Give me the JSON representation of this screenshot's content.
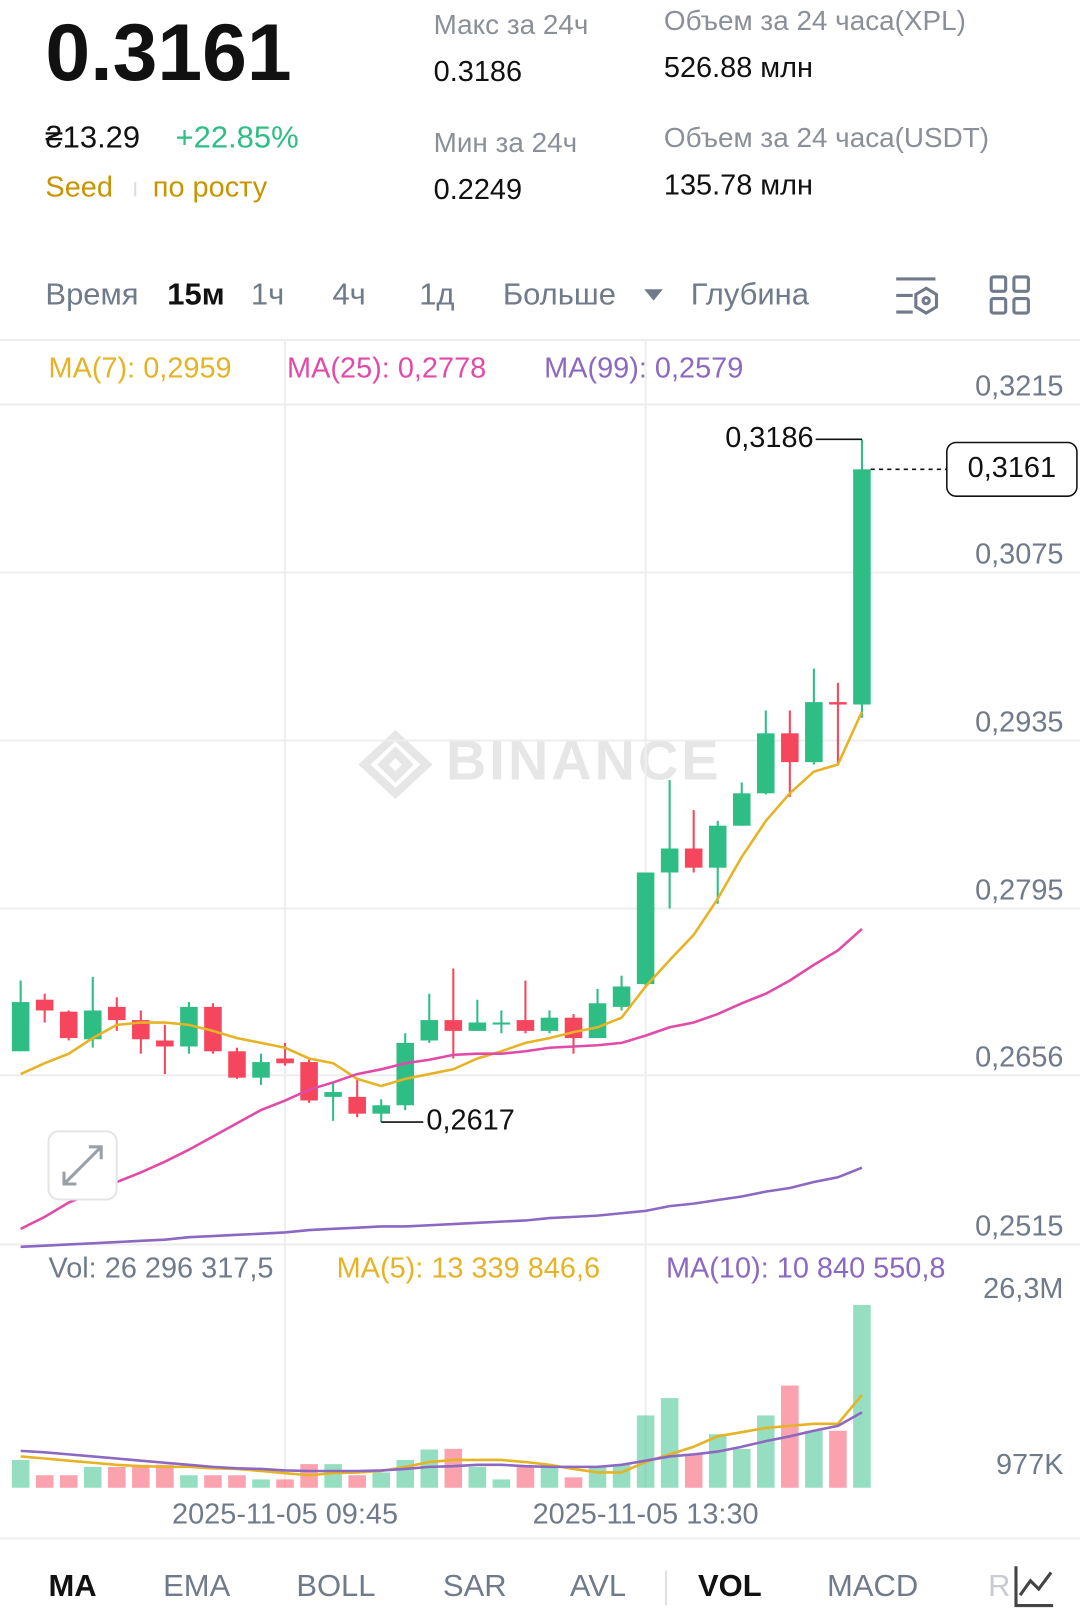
{
  "header": {
    "price": "0.3161",
    "fiat": "₴13.29",
    "change": "+22.85%",
    "tags": [
      "Seed",
      "по росту"
    ],
    "stats": [
      {
        "label": "Макс за 24ч",
        "value": "0.3186"
      },
      {
        "label": "Мин за 24ч",
        "value": "0.2249"
      },
      {
        "label": "Объем за 24 часа(XPL)",
        "value": "526.88 млн"
      },
      {
        "label": "Объем за 24 часа(USDT)",
        "value": "135.78 млн"
      }
    ]
  },
  "tabs": {
    "time_label": "Время",
    "intervals": [
      "15м",
      "1ч",
      "4ч",
      "1д"
    ],
    "more": "Больше",
    "depth": "Глубина"
  },
  "watermark": "BINANCE",
  "chart_data": [
    {
      "type": "candlestick",
      "categories": [
        null,
        null,
        null,
        null,
        null,
        null,
        null,
        null,
        null,
        null,
        null,
        "2025-11-05 09:45",
        null,
        null,
        null,
        null,
        null,
        null,
        null,
        null,
        null,
        null,
        null,
        null,
        null,
        null,
        "2025-11-05 13:30",
        null,
        null,
        null,
        null,
        null,
        null,
        null,
        null,
        null
      ],
      "open": [
        0.2676,
        0.2719,
        0.2709,
        0.2686,
        0.2713,
        0.2702,
        0.2685,
        0.268,
        0.2713,
        0.2676,
        0.2654,
        0.267,
        0.2667,
        0.2638,
        0.2638,
        0.2624,
        0.2631,
        0.2685,
        0.2702,
        0.2693,
        0.2699,
        0.2702,
        0.2693,
        0.2704,
        0.2687,
        0.2713,
        0.2732,
        0.2825,
        0.2845,
        0.2829,
        0.2864,
        0.2891,
        0.2941,
        0.2917,
        0.2967,
        0.2965
      ],
      "high": [
        0.2735,
        0.2724,
        0.271,
        0.2738,
        0.2721,
        0.271,
        0.2698,
        0.2717,
        0.2716,
        0.2679,
        0.2674,
        0.2683,
        0.267,
        0.265,
        0.2653,
        0.2636,
        0.2691,
        0.2724,
        0.2745,
        0.2719,
        0.271,
        0.2735,
        0.271,
        0.2707,
        0.2728,
        0.2739,
        0.2825,
        0.2902,
        0.2877,
        0.2868,
        0.29,
        0.296,
        0.296,
        0.2995,
        0.2983,
        0.3186
      ],
      "low": [
        0.2676,
        0.27,
        0.2685,
        0.2679,
        0.2693,
        0.2674,
        0.2657,
        0.2674,
        0.2674,
        0.2653,
        0.2648,
        0.2664,
        0.2633,
        0.2618,
        0.2621,
        0.2617,
        0.2627,
        0.2683,
        0.267,
        0.2693,
        0.2691,
        0.2691,
        0.2691,
        0.2674,
        0.2687,
        0.271,
        0.273,
        0.2795,
        0.2825,
        0.2799,
        0.2864,
        0.289,
        0.2888,
        0.2915,
        0.2915,
        0.2954
      ],
      "close": [
        0.2717,
        0.271,
        0.2687,
        0.271,
        0.2702,
        0.2686,
        0.268,
        0.2713,
        0.2676,
        0.2654,
        0.2667,
        0.2666,
        0.2635,
        0.2642,
        0.2624,
        0.2631,
        0.2683,
        0.2702,
        0.2693,
        0.27,
        0.27,
        0.2693,
        0.2704,
        0.2687,
        0.2716,
        0.273,
        0.2825,
        0.2845,
        0.2829,
        0.2864,
        0.2891,
        0.2941,
        0.2917,
        0.2967,
        0.2965,
        0.3161
      ],
      "up_color": "#2ebd85",
      "down_color": "#f6465d",
      "series": [
        {
          "name": "MA(7): 0,2959",
          "color": "#e6b325",
          "values": [
            0.2657,
            0.2666,
            0.2674,
            0.2687,
            0.2698,
            0.27,
            0.27,
            0.2698,
            0.2693,
            0.2687,
            0.2683,
            0.2679,
            0.267,
            0.2666,
            0.2653,
            0.2647,
            0.2653,
            0.2657,
            0.2661,
            0.267,
            0.2676,
            0.2683,
            0.2687,
            0.2692,
            0.2696,
            0.2704,
            0.273,
            0.2752,
            0.2773,
            0.2803,
            0.2838,
            0.2868,
            0.2891,
            0.2909,
            0.2915,
            0.2959
          ]
        },
        {
          "name": "MA(25): 0,2778",
          "color": "#e14aa8",
          "values": [
            0.2528,
            0.2538,
            0.255,
            0.2558,
            0.2567,
            0.2575,
            0.2584,
            0.2594,
            0.2605,
            0.2616,
            0.2627,
            0.2635,
            0.2644,
            0.265,
            0.2657,
            0.2661,
            0.2666,
            0.2669,
            0.2673,
            0.2674,
            0.2674,
            0.2676,
            0.2679,
            0.268,
            0.2681,
            0.2683,
            0.2689,
            0.2696,
            0.27,
            0.2707,
            0.2716,
            0.2724,
            0.2735,
            0.2748,
            0.276,
            0.2778
          ]
        },
        {
          "name": "MA(99): 0,2579",
          "color": "#8c68c2",
          "values": [
            0.2513,
            0.2514,
            0.2515,
            0.2516,
            0.2517,
            0.2518,
            0.2519,
            0.2521,
            0.2522,
            0.2523,
            0.2524,
            0.2525,
            0.2527,
            0.2528,
            0.2529,
            0.253,
            0.253,
            0.2531,
            0.2532,
            0.2533,
            0.2534,
            0.2535,
            0.2537,
            0.2538,
            0.2539,
            0.2541,
            0.2543,
            0.2547,
            0.2549,
            0.2552,
            0.2555,
            0.2559,
            0.2562,
            0.2567,
            0.2571,
            0.2579
          ]
        }
      ],
      "ylim": [
        0.2512,
        0.3268
      ],
      "yticks": [
        {
          "value": 0.3215,
          "label": "0,3215"
        },
        {
          "value": 0.3075,
          "label": "0,3075"
        },
        {
          "value": 0.2935,
          "label": "0,2935"
        },
        {
          "value": 0.2795,
          "label": "0,2795"
        },
        {
          "value": 0.2656,
          "label": "0,2656"
        },
        {
          "value": 0.2515,
          "label": "0,2515"
        }
      ],
      "grid": true,
      "annotations": {
        "high": {
          "value": 0.3186,
          "label": "0,3186"
        },
        "low": {
          "value": 0.2617,
          "label": "0,2617"
        },
        "last": {
          "value": 0.3161,
          "label": "0,3161"
        }
      }
    },
    {
      "type": "bar",
      "series": [
        {
          "name": "Vol: 26 296 317,5",
          "values": [
            4000000,
            1800000,
            1800000,
            3000000,
            3000000,
            3300000,
            3300000,
            1800000,
            1800000,
            1800000,
            1200000,
            1200000,
            3400000,
            3400000,
            1800000,
            2200000,
            4000000,
            5500000,
            5600000,
            3000000,
            1200000,
            3000000,
            3300000,
            1500000,
            3000000,
            3300000,
            10400000,
            12900000,
            4800000,
            7700000,
            5600000,
            10400000,
            14700000,
            8200000,
            8200000,
            26296317.5
          ]
        },
        {
          "name": "MA(5): 13 339 846,6",
          "color": "#e6b325",
          "values": [
            4500000,
            4200000,
            3900000,
            3600000,
            3300000,
            3100000,
            3000000,
            3000000,
            2800000,
            2700000,
            2400000,
            2100000,
            1800000,
            2100000,
            2200000,
            2400000,
            3000000,
            3700000,
            4000000,
            4000000,
            4000000,
            3700000,
            3300000,
            2700000,
            2200000,
            2200000,
            3700000,
            4800000,
            5900000,
            7400000,
            8000000,
            8600000,
            8900000,
            9200000,
            9200000,
            13339846.6
          ]
        },
        {
          "name": "MA(10): 10 840 550,8",
          "color": "#8c68c2",
          "values": [
            5300000,
            5100000,
            4800000,
            4500000,
            4200000,
            3900000,
            3600000,
            3300000,
            3000000,
            2800000,
            2700000,
            2500000,
            2400000,
            2400000,
            2400000,
            2500000,
            2700000,
            3000000,
            3100000,
            3300000,
            3300000,
            3100000,
            3000000,
            3000000,
            3000000,
            3300000,
            3900000,
            4500000,
            4800000,
            5200000,
            5900000,
            6700000,
            7400000,
            8200000,
            8900000,
            10840550.8
          ]
        }
      ],
      "up_color": "#2ebd85",
      "down_color": "#f6465d",
      "ylim": [
        0,
        26300000
      ],
      "yticks": [
        {
          "value": 26300000,
          "label": "26,3M"
        },
        {
          "value": 977000,
          "label": "977K"
        }
      ]
    }
  ],
  "indicators": [
    "MA",
    "EMA",
    "BOLL",
    "SAR",
    "AVL",
    "VOL",
    "MACD",
    "R"
  ]
}
